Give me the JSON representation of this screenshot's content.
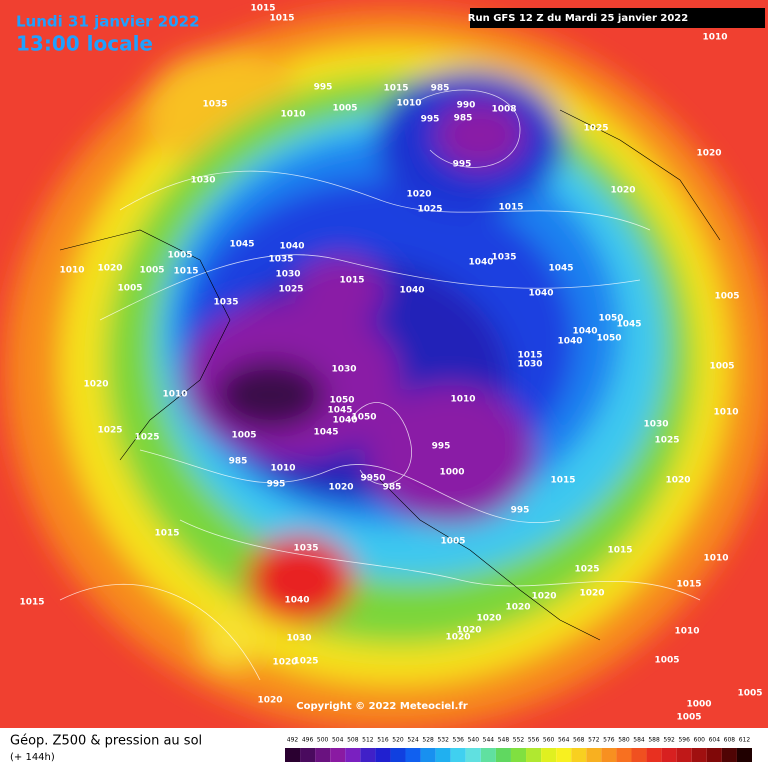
{
  "header": {
    "date": "Lundi 31 janvier 2022",
    "time": "13:00 locale",
    "run": "Run GFS 12 Z du Mardi 25 janvier 2022"
  },
  "copyright": "Copyright © 2022 Meteociel.fr",
  "footer": {
    "title": "Géop. Z500 & pression au sol",
    "lead": "(+ 144h)"
  },
  "scale": {
    "values": [
      492,
      496,
      500,
      504,
      508,
      512,
      516,
      520,
      524,
      528,
      532,
      536,
      540,
      544,
      548,
      552,
      556,
      560,
      564,
      568,
      572,
      576,
      580,
      584,
      588,
      592,
      596,
      600,
      604,
      608,
      612
    ],
    "colors": [
      "#2a0030",
      "#4a0a5e",
      "#6a1280",
      "#8a1aa2",
      "#7a20c0",
      "#4020c8",
      "#2020d0",
      "#1040e0",
      "#1060f0",
      "#1890f0",
      "#20b0f0",
      "#40d0f0",
      "#60e0e0",
      "#60e0a0",
      "#60d860",
      "#80e040",
      "#b0e830",
      "#e0f020",
      "#f8f020",
      "#f8d020",
      "#f8b020",
      "#f89020",
      "#f87020",
      "#f05020",
      "#e83020",
      "#d82020",
      "#c01818",
      "#a01010",
      "#800808",
      "#500404",
      "#200000"
    ]
  },
  "pressure_labels": [
    "1015",
    "1015",
    "1010",
    "1035",
    "1010",
    "995",
    "1015",
    "1005",
    "1010",
    "985",
    "990",
    "1008",
    "985",
    "995",
    "1025",
    "995",
    "1020",
    "1030",
    "1020",
    "1025",
    "1015",
    "1020",
    "1005",
    "1045",
    "1040",
    "1035",
    "1030",
    "1025",
    "1015",
    "1040",
    "1040",
    "1035",
    "1045",
    "1040",
    "1010",
    "1020",
    "1005",
    "1015",
    "1005",
    "1035",
    "1005",
    "1050",
    "1045",
    "1040",
    "1040",
    "1050",
    "1015",
    "1030",
    "1005",
    "1020",
    "1010",
    "1030",
    "1010",
    "1050",
    "1045",
    "1040",
    "1050",
    "1045",
    "1010",
    "1030",
    "1025",
    "1025",
    "1025",
    "1005",
    "995",
    "1000",
    "1020",
    "985",
    "1010",
    "995",
    "1020",
    "9950",
    "985",
    "1015",
    "995",
    "1015",
    "1005",
    "1015",
    "1010",
    "1035",
    "1025",
    "1015",
    "1015",
    "1040",
    "1020",
    "1020",
    "1020",
    "1020",
    "1030",
    "1020",
    "1010",
    "1020",
    "1025",
    "1020",
    "1005",
    "1005",
    "1020",
    "1000",
    "1005"
  ]
}
